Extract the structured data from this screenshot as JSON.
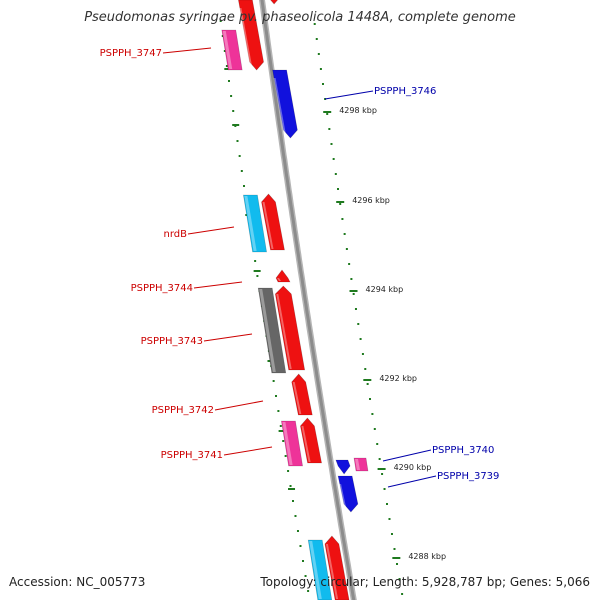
{
  "title": "Pseudomonas syringae pv. phaseolicola 1448A, complete genome",
  "accession": "Accession: NC_005773",
  "summary": "Topology: circular; Length: 5,928,787 bp; Genes: 5,066",
  "colors": {
    "backbone": "#8c8c8c",
    "tick": "#1f7a1f",
    "forward_label": "#cc0000",
    "reverse_label": "#0000aa",
    "red": "#ee1111",
    "pink": "#ee3399",
    "blue": "#1111dd",
    "cyan": "#11bbee",
    "gray": "#666666"
  },
  "ticks": [
    "4298 kbp",
    "4296 kbp",
    "4294 kbp",
    "4292 kbp",
    "4290 kbp",
    "4288 kbp"
  ],
  "labels": [
    {
      "text": "PSPPH_3747",
      "strand": "forward"
    },
    {
      "text": "PSPPH_3746",
      "strand": "reverse"
    },
    {
      "text": "nrdB",
      "strand": "forward"
    },
    {
      "text": "PSPPH_3744",
      "strand": "forward"
    },
    {
      "text": "PSPPH_3743",
      "strand": "forward"
    },
    {
      "text": "PSPPH_3742",
      "strand": "forward"
    },
    {
      "text": "PSPPH_3741",
      "strand": "forward"
    },
    {
      "text": "PSPPH_3740",
      "strand": "reverse"
    },
    {
      "text": "PSPPH_3739",
      "strand": "reverse"
    }
  ]
}
